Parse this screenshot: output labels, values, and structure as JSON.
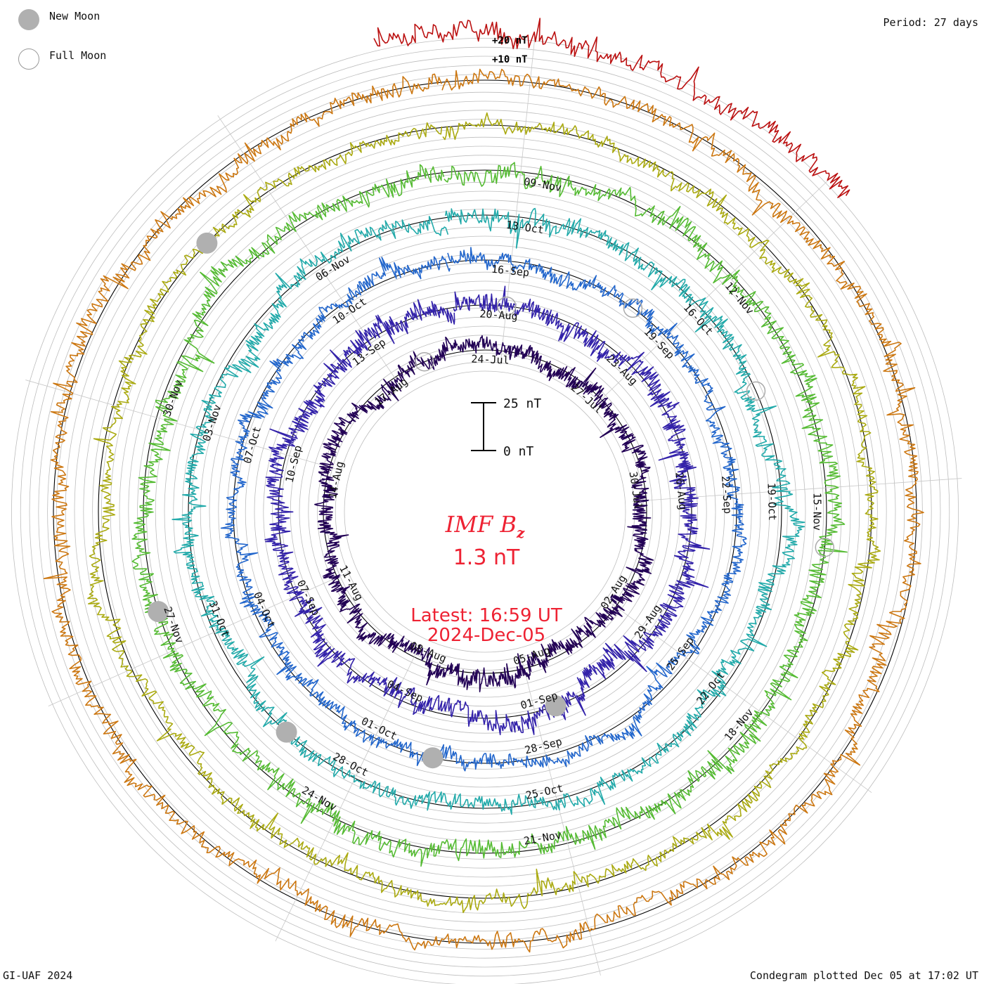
{
  "legend": {
    "new_moon": "New Moon",
    "full_moon": "Full Moon"
  },
  "period_label": "Period: 27 days",
  "footer_left": "GI-UAF 2024",
  "footer_right": "Condegram plotted Dec 05 at 17:02 UT",
  "scale_labels": {
    "plus20": "+20 nT",
    "plus10": "+10 nT"
  },
  "scale_bar": {
    "top": "25 nT",
    "bottom": "0 nT"
  },
  "center": {
    "title": "IMF B",
    "title_sub": "z",
    "value": "1.3 nT",
    "latest": "Latest: 16:59 UT",
    "date": "2024-Dec-05"
  },
  "colors": {
    "center_text": "#ee2233",
    "moon_fill": "#b0b0b0",
    "ring": "#bdbdbd",
    "zero_line": "#000000"
  },
  "chart_data": {
    "type": "condegram",
    "quantity": "IMF Bz",
    "units": "nT",
    "period_days": 27,
    "latest_value": 1.3,
    "scale": {
      "min": 0,
      "max": 25
    },
    "rotations": [
      {
        "index": 1,
        "color": "#220055",
        "dates": [
          "24-Jul",
          "27-Jul",
          "30-Jul",
          "02-Aug",
          "05-Aug",
          "08-Aug",
          "11-Aug",
          "14-Aug",
          "17-Aug"
        ]
      },
      {
        "index": 2,
        "color": "#3322aa",
        "dates": [
          "20-Aug",
          "23-Aug",
          "26-Aug",
          "29-Aug",
          "01-Sep",
          "04-Sep",
          "07-Sep",
          "10-Sep",
          "13-Sep"
        ]
      },
      {
        "index": 3,
        "color": "#2266cc",
        "dates": [
          "16-Sep",
          "19-Sep",
          "22-Sep",
          "25-Sep",
          "28-Sep",
          "01-Oct",
          "04-Oct",
          "07-Oct",
          "10-Oct"
        ]
      },
      {
        "index": 4,
        "color": "#22aaaa",
        "dates": [
          "13-Oct",
          "16-Oct",
          "19-Oct",
          "22-Oct",
          "25-Oct",
          "28-Oct",
          "31-Oct",
          "03-Nov",
          "06-Nov"
        ]
      },
      {
        "index": 5,
        "color": "#55bb33",
        "dates": [
          "09-Nov",
          "12-Nov",
          "15-Nov",
          "18-Nov",
          "21-Nov",
          "24-Nov",
          "27-Nov",
          "30-Nov"
        ]
      },
      {
        "index": 6,
        "color": "#aaaa11",
        "dates": []
      },
      {
        "index": 7,
        "color": "#cc7711",
        "dates": []
      },
      {
        "index": 8,
        "color": "#bb1111",
        "dates": []
      }
    ],
    "date_labels": [
      {
        "text": "24-Jul",
        "ring": 1,
        "angle": 2
      },
      {
        "text": "27-Jul",
        "ring": 1,
        "angle": 42
      },
      {
        "text": "30-Jul",
        "ring": 1,
        "angle": 82
      },
      {
        "text": "02-Aug",
        "ring": 1,
        "angle": 122
      },
      {
        "text": "05-Aug",
        "ring": 1,
        "angle": 162
      },
      {
        "text": "08-Aug",
        "ring": 1,
        "angle": 202
      },
      {
        "text": "11-Aug",
        "ring": 1,
        "angle": 242
      },
      {
        "text": "14-Aug",
        "ring": 1,
        "angle": 282
      },
      {
        "text": "17-Aug",
        "ring": 1,
        "angle": 322
      },
      {
        "text": "20-Aug",
        "ring": 2,
        "angle": 4
      },
      {
        "text": "23-Aug",
        "ring": 2,
        "angle": 44
      },
      {
        "text": "26-Aug",
        "ring": 2,
        "angle": 84
      },
      {
        "text": "29-Aug",
        "ring": 2,
        "angle": 124
      },
      {
        "text": "01-Sep",
        "ring": 2,
        "angle": 164
      },
      {
        "text": "04-Sep",
        "ring": 2,
        "angle": 204
      },
      {
        "text": "07-Sep",
        "ring": 2,
        "angle": 244
      },
      {
        "text": "10-Sep",
        "ring": 2,
        "angle": 284
      },
      {
        "text": "13-Sep",
        "ring": 2,
        "angle": 324
      },
      {
        "text": "16-Sep",
        "ring": 3,
        "angle": 6
      },
      {
        "text": "19-Sep",
        "ring": 3,
        "angle": 46
      },
      {
        "text": "22-Sep",
        "ring": 3,
        "angle": 86
      },
      {
        "text": "25-Sep",
        "ring": 3,
        "angle": 126
      },
      {
        "text": "28-Sep",
        "ring": 3,
        "angle": 166
      },
      {
        "text": "01-Oct",
        "ring": 3,
        "angle": 206
      },
      {
        "text": "04-Oct",
        "ring": 3,
        "angle": 246
      },
      {
        "text": "07-Oct",
        "ring": 3,
        "angle": 286
      },
      {
        "text": "10-Oct",
        "ring": 3,
        "angle": 326
      },
      {
        "text": "13-Oct",
        "ring": 4,
        "angle": 8
      },
      {
        "text": "16-Oct",
        "ring": 4,
        "angle": 48
      },
      {
        "text": "19-Oct",
        "ring": 4,
        "angle": 88
      },
      {
        "text": "22-Oct",
        "ring": 4,
        "angle": 128
      },
      {
        "text": "25-Oct",
        "ring": 4,
        "angle": 168
      },
      {
        "text": "28-Oct",
        "ring": 4,
        "angle": 208
      },
      {
        "text": "31-Oct",
        "ring": 4,
        "angle": 248
      },
      {
        "text": "03-Nov",
        "ring": 4,
        "angle": 288
      },
      {
        "text": "06-Nov",
        "ring": 4,
        "angle": 328
      },
      {
        "text": "09-Nov",
        "ring": 5,
        "angle": 10
      },
      {
        "text": "12-Nov",
        "ring": 5,
        "angle": 50
      },
      {
        "text": "15-Nov",
        "ring": 5,
        "angle": 90
      },
      {
        "text": "18-Nov",
        "ring": 5,
        "angle": 130
      },
      {
        "text": "21-Nov",
        "ring": 5,
        "angle": 170
      },
      {
        "text": "24-Nov",
        "ring": 5,
        "angle": 210
      },
      {
        "text": "27-Nov",
        "ring": 5,
        "angle": 250
      },
      {
        "text": "30-Nov",
        "ring": 5,
        "angle": 290
      }
    ],
    "new_moons": [
      {
        "ring": 2,
        "angle": 160
      },
      {
        "ring": 3,
        "angle": 192
      },
      {
        "ring": 4,
        "angle": 222
      },
      {
        "ring": 5,
        "angle": 253
      },
      {
        "ring": 6,
        "angle": 314
      }
    ],
    "full_moons": [
      {
        "ring": 1,
        "angle": 338
      },
      {
        "ring": 2,
        "angle": 6
      },
      {
        "ring": 3,
        "angle": 36
      },
      {
        "ring": 4,
        "angle": 66
      },
      {
        "ring": 5,
        "angle": 96
      }
    ]
  }
}
